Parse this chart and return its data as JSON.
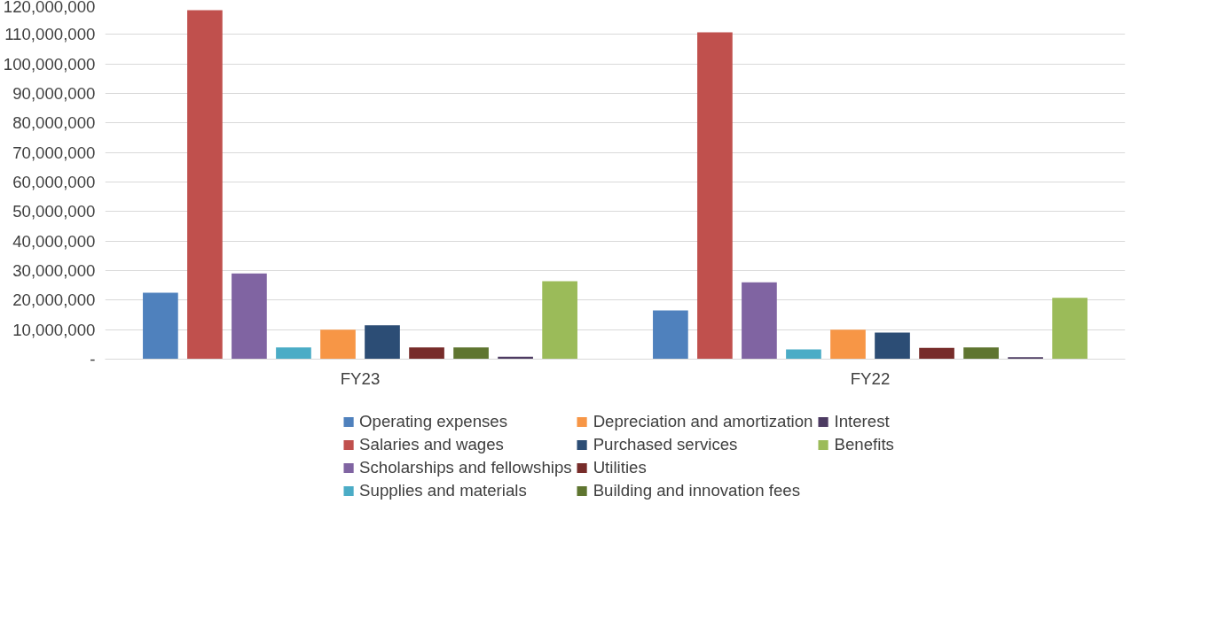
{
  "chart_data": {
    "type": "bar",
    "categories": [
      "FY23",
      "FY22"
    ],
    "series": [
      {
        "name": "Operating expenses",
        "color": "#4f81bd",
        "values": [
          22500000,
          16500000
        ]
      },
      {
        "name": "Salaries and wages",
        "color": "#c0504d",
        "values": [
          118200000,
          110700000
        ]
      },
      {
        "name": "Scholarships and fellowships",
        "color": "#8064a2",
        "values": [
          29000000,
          26000000
        ]
      },
      {
        "name": "Supplies and materials",
        "color": "#4bacc6",
        "values": [
          4000000,
          3300000
        ]
      },
      {
        "name": "Depreciation and amortization",
        "color": "#f79646",
        "values": [
          10000000,
          10000000
        ]
      },
      {
        "name": "Purchased services",
        "color": "#2c4d75",
        "values": [
          11500000,
          9000000
        ]
      },
      {
        "name": "Utilities",
        "color": "#772c2a",
        "values": [
          4000000,
          3800000
        ]
      },
      {
        "name": "Building and innovation fees",
        "color": "#5f7530",
        "values": [
          4000000,
          4000000
        ]
      },
      {
        "name": "Interest",
        "color": "#4d3b62",
        "values": [
          800000,
          700000
        ]
      },
      {
        "name": "Benefits",
        "color": "#9bbb59",
        "values": [
          26400000,
          20800000
        ]
      }
    ],
    "ylim": [
      0,
      120000000
    ],
    "yticks": [
      {
        "value": 0,
        "label": "-"
      },
      {
        "value": 10000000,
        "label": "10,000,000"
      },
      {
        "value": 20000000,
        "label": "20,000,000"
      },
      {
        "value": 30000000,
        "label": "30,000,000"
      },
      {
        "value": 40000000,
        "label": "40,000,000"
      },
      {
        "value": 50000000,
        "label": "50,000,000"
      },
      {
        "value": 60000000,
        "label": "60,000,000"
      },
      {
        "value": 70000000,
        "label": "70,000,000"
      },
      {
        "value": 80000000,
        "label": "80,000,000"
      },
      {
        "value": 90000000,
        "label": "90,000,000"
      },
      {
        "value": 100000000,
        "label": "100,000,000"
      },
      {
        "value": 110000000,
        "label": "110,000,000"
      },
      {
        "value": 120000000,
        "label": "120,000,000"
      }
    ],
    "grid": "y",
    "legend": "bottom"
  }
}
